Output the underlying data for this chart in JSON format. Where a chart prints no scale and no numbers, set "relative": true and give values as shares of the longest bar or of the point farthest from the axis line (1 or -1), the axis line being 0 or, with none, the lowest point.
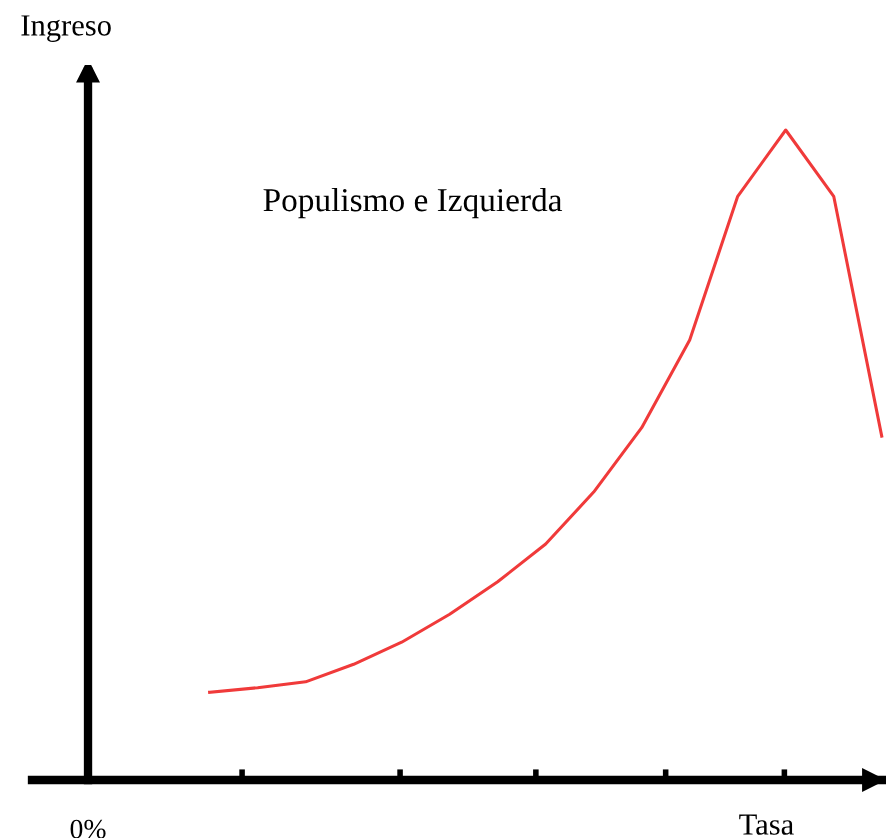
{
  "chart_data": {
    "type": "line",
    "title": "Populismo e Izquierda",
    "xlabel": "Tasa",
    "ylabel": "Ingreso",
    "relative": true,
    "categories": [
      null,
      null,
      null,
      null,
      null,
      null,
      null,
      null,
      null,
      null,
      null,
      null,
      null,
      null,
      null
    ],
    "series": [
      {
        "color": "#f03a3a",
        "values": [
          0.135,
          0.142,
          0.151,
          0.178,
          0.212,
          0.255,
          0.305,
          0.363,
          0.443,
          0.542,
          0.677,
          0.898,
          1.0,
          0.898,
          0.529
        ]
      }
    ],
    "annotations": [
      "0%"
    ],
    "legend": false,
    "marker": "none",
    "line_style": "solid"
  }
}
